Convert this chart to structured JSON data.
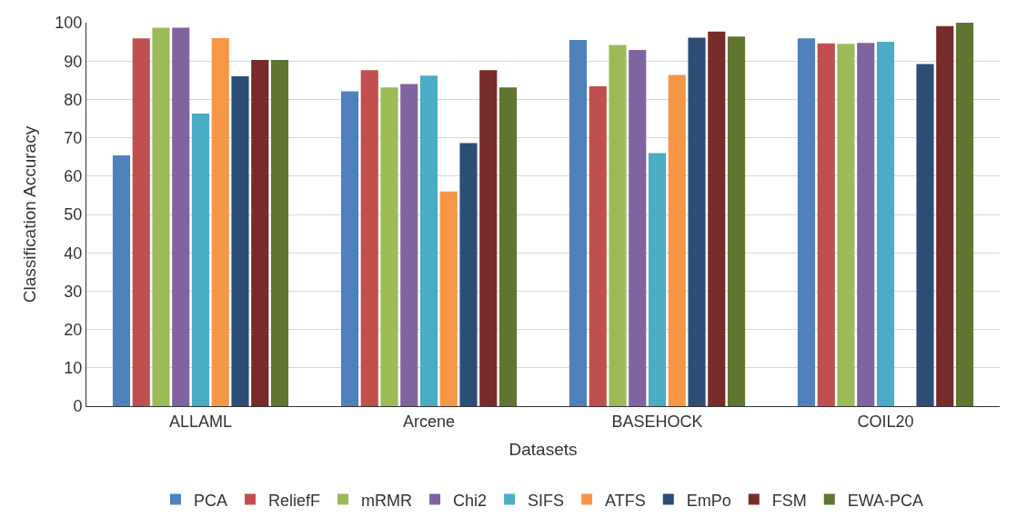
{
  "chart_data": {
    "type": "bar",
    "xlabel": "Datasets",
    "ylabel": "Classification Accuracy",
    "categories": [
      "ALLAML",
      "Arcene",
      "BASEHOCK",
      "COIL20"
    ],
    "series": [
      {
        "name": "PCA",
        "color": "#4f81bd",
        "values": [
          65.4,
          82.1,
          95.5,
          95.9
        ]
      },
      {
        "name": "ReliefF",
        "color": "#c0504d",
        "values": [
          95.9,
          87.6,
          83.4,
          94.6
        ]
      },
      {
        "name": "mRMR",
        "color": "#9bbb59",
        "values": [
          98.7,
          83.1,
          94.2,
          94.5
        ]
      },
      {
        "name": "Chi2",
        "color": "#8064a2",
        "values": [
          98.7,
          84.0,
          92.9,
          94.7
        ]
      },
      {
        "name": "SIFS",
        "color": "#4bacc6",
        "values": [
          76.3,
          86.2,
          66.0,
          95.0
        ]
      },
      {
        "name": "ATFS",
        "color": "#f79646",
        "values": [
          96.0,
          56.0,
          86.4,
          null
        ]
      },
      {
        "name": "EmPo",
        "color": "#2c4d75",
        "values": [
          86.0,
          68.6,
          96.1,
          89.2
        ]
      },
      {
        "name": "FSM",
        "color": "#772c2a",
        "values": [
          90.3,
          87.6,
          97.7,
          99.1
        ]
      },
      {
        "name": "EWA-PCA",
        "color": "#5f7530",
        "values": [
          90.3,
          83.1,
          96.4,
          100
        ]
      }
    ],
    "ylim": [
      0,
      100
    ],
    "yticks": [
      0,
      10,
      20,
      30,
      40,
      50,
      60,
      70,
      80,
      90,
      100
    ],
    "grid": "y",
    "legend": "bottom"
  }
}
